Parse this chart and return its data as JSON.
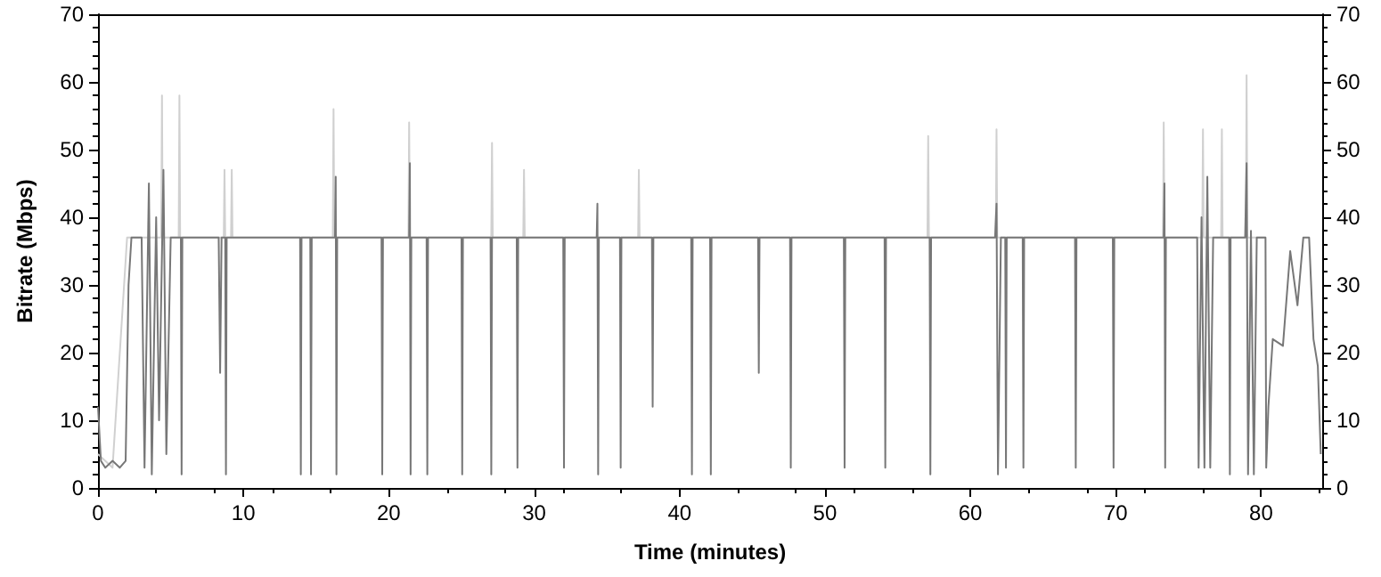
{
  "chart_data": {
    "type": "line",
    "xlabel": "Time (minutes)",
    "ylabel": "Bitrate (Mbps)",
    "xlim": [
      0,
      84.2
    ],
    "xticks": [
      0,
      10,
      20,
      30,
      40,
      50,
      60,
      70,
      80
    ],
    "ylim": [
      0,
      70
    ],
    "yticks": [
      0,
      10,
      20,
      30,
      40,
      50,
      60,
      70
    ],
    "y2lim": [
      0,
      70
    ],
    "y2ticks": [
      0,
      10,
      20,
      30,
      40,
      50,
      60,
      70
    ],
    "grid": false,
    "marker": "none",
    "line_style": "solid",
    "series": [
      {
        "color": "#d0d0d0",
        "x": [
          0,
          1,
          2,
          4.35,
          4.4,
          4.45,
          5.55,
          5.6,
          5.65,
          8.65,
          8.7,
          8.75,
          9.15,
          9.2,
          9.25,
          16.15,
          16.2,
          16.25,
          21.35,
          21.4,
          21.45,
          27.05,
          27.1,
          27.15,
          29.25,
          29.3,
          29.35,
          37.15,
          37.2,
          37.25,
          57.05,
          57.1,
          57.15,
          61.75,
          61.8,
          61.85,
          73.25,
          73.3,
          73.35,
          75.95,
          76,
          76.05,
          77.25,
          77.3,
          77.35,
          78.95,
          79,
          79.05,
          80.3
        ],
        "values": [
          5,
          3,
          37,
          37,
          58,
          37,
          37,
          58,
          37,
          37,
          47,
          37,
          37,
          47,
          37,
          37,
          56,
          37,
          37,
          54,
          37,
          37,
          51,
          37,
          37,
          47,
          37,
          37,
          47,
          37,
          37,
          52,
          37,
          37,
          53,
          37,
          37,
          54,
          37,
          37,
          53,
          37,
          37,
          53,
          37,
          37,
          61,
          37,
          37
        ]
      },
      {
        "color": "#777777",
        "x": [
          0,
          0.2,
          0.5,
          1,
          1.5,
          1.9,
          2.1,
          2.3,
          3,
          3.2,
          3.5,
          3.7,
          4,
          4.2,
          4.5,
          4.7,
          5,
          5.7,
          5.75,
          5.8,
          8.3,
          8.4,
          8.5,
          8.75,
          8.8,
          8.85,
          13.9,
          13.95,
          14,
          14.6,
          14.65,
          14.7,
          16.3,
          16.35,
          16.4,
          16.45,
          19.5,
          19.55,
          19.6,
          21.4,
          21.45,
          21.5,
          21.55,
          22.6,
          22.65,
          22.7,
          25,
          25.05,
          25.1,
          27,
          27.05,
          27.1,
          28.8,
          28.85,
          28.9,
          32,
          32.05,
          32.1,
          34.3,
          34.35,
          34.4,
          34.45,
          35.9,
          35.95,
          36,
          38.1,
          38.15,
          38.2,
          40.8,
          40.85,
          40.9,
          42.1,
          42.15,
          42.2,
          45.4,
          45.45,
          45.5,
          47.6,
          47.65,
          47.7,
          51.3,
          51.35,
          51.4,
          54.1,
          54.15,
          54.2,
          57.2,
          57.25,
          57.3,
          61.7,
          61.8,
          61.9,
          62.1,
          62.4,
          62.45,
          62.5,
          63.6,
          63.65,
          63.7,
          67.2,
          67.25,
          67.3,
          69.8,
          69.85,
          69.9,
          73.3,
          73.35,
          73.4,
          73.45,
          75.6,
          75.7,
          75.9,
          76.1,
          76.3,
          76.5,
          76.7,
          77.8,
          77.85,
          77.9,
          78.9,
          79,
          79.1,
          79.3,
          79.5,
          79.7,
          80.3,
          80.35,
          80.5,
          80.8,
          81.5,
          82,
          82.5,
          82.9,
          83.3,
          83.6,
          83.9,
          84.1
        ],
        "values": [
          12,
          4,
          3,
          4,
          3,
          4,
          30,
          37,
          37,
          3,
          45,
          2,
          40,
          10,
          47,
          5,
          37,
          37,
          2,
          37,
          37,
          17,
          37,
          37,
          2,
          37,
          37,
          2,
          37,
          37,
          2,
          37,
          37,
          46,
          2,
          37,
          37,
          2,
          37,
          37,
          48,
          2,
          37,
          37,
          2,
          37,
          37,
          2,
          37,
          37,
          2,
          37,
          37,
          3,
          37,
          37,
          3,
          37,
          37,
          42,
          2,
          37,
          37,
          3,
          37,
          37,
          12,
          37,
          37,
          2,
          37,
          37,
          2,
          37,
          37,
          17,
          37,
          37,
          3,
          37,
          37,
          3,
          37,
          37,
          3,
          37,
          37,
          2,
          37,
          37,
          42,
          2,
          37,
          37,
          3,
          37,
          37,
          3,
          37,
          37,
          3,
          37,
          37,
          3,
          37,
          37,
          45,
          3,
          37,
          37,
          3,
          40,
          3,
          46,
          3,
          37,
          37,
          2,
          37,
          37,
          48,
          2,
          38,
          2,
          37,
          37,
          3,
          12,
          22,
          21,
          35,
          27,
          37,
          37,
          22,
          18,
          5
        ]
      }
    ]
  }
}
